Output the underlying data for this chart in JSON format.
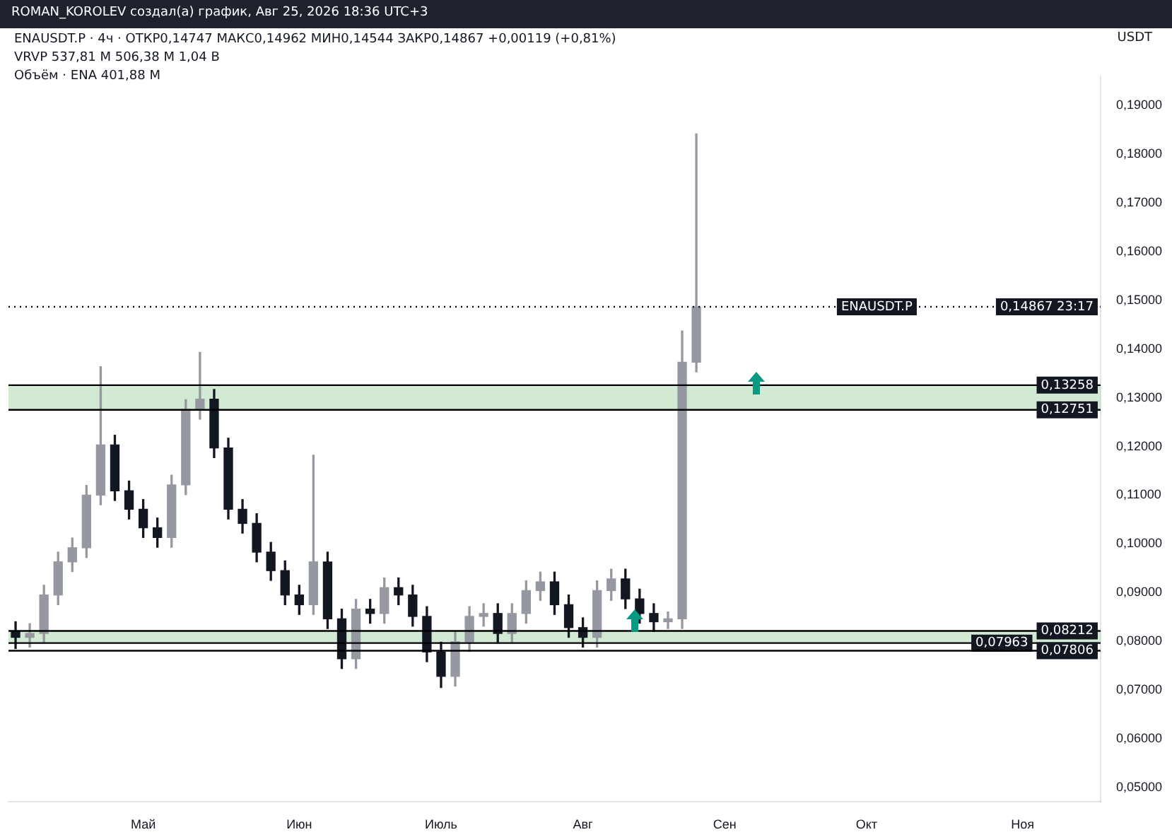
{
  "chart_data": {
    "type": "candlestick",
    "title": "ROMAN_KOROLEV создал(а) график, Авг 25, 2026 18:36 UTC+3",
    "subtitle": "ENAUSDT.P · 4ч · ОТКР0,14747 МАКС0,14962 МИН0,14544 ЗАКР0,14867 +0,00119 (+0,81%)",
    "ylabel": "USDT",
    "annotations": [
      "VRVP 537,81 M 506,38 M 1,04 B",
      "Объём · ENA 401,88 M",
      {
        "text": "ENAUSDT.P",
        "y": 0.14867
      }
    ],
    "categories": [
      null,
      null,
      null,
      null,
      null,
      null,
      null,
      null,
      null,
      "Май",
      null,
      null,
      null,
      null,
      null,
      null,
      null,
      null,
      null,
      null,
      "Июн",
      null,
      null,
      null,
      null,
      null,
      null,
      null,
      null,
      null,
      "Июль",
      null,
      null,
      null,
      null,
      null,
      null,
      null,
      null,
      null,
      "Авг",
      null,
      null,
      null,
      null,
      null,
      null,
      null,
      null,
      null,
      "Сен",
      null,
      null,
      null,
      null,
      null,
      null,
      null,
      null,
      null,
      "Окт",
      null,
      null,
      null,
      null,
      null,
      null,
      null,
      null,
      null,
      null,
      "Ноя",
      null,
      null,
      null,
      null,
      null
    ],
    "series": [
      {
        "colors": [
          "#131722",
          "#9598a1",
          "#9598a1",
          "#9598a1",
          "#9598a1",
          "#9598a1",
          "#9598a1",
          "#131722",
          "#131722",
          "#131722",
          "#131722",
          "#9598a1",
          "#9598a1",
          "#9598a1",
          "#131722",
          "#131722",
          "#131722",
          "#131722",
          "#131722",
          "#131722",
          "#131722",
          "#9598a1",
          "#131722",
          "#131722",
          "#9598a1",
          "#131722",
          "#9598a1",
          "#131722",
          "#131722",
          "#131722",
          "#131722",
          "#9598a1",
          "#9598a1",
          "#9598a1",
          "#131722",
          "#9598a1",
          "#9598a1",
          "#9598a1",
          "#131722",
          "#131722",
          "#131722",
          "#9598a1",
          "#9598a1",
          "#131722",
          "#131722",
          "#131722",
          "#9598a1",
          "#9598a1",
          "#9598a1",
          null,
          null,
          null,
          null,
          null,
          null,
          null,
          null,
          null,
          null,
          null,
          null,
          null,
          null,
          null,
          null,
          null,
          null,
          null,
          null,
          null,
          null,
          null,
          null,
          null,
          null,
          null,
          null
        ],
        "ohlc": [
          [
            0.082,
            0.084,
            0.0785,
            0.0808
          ],
          [
            0.0808,
            0.0836,
            0.0788,
            0.0816
          ],
          [
            0.0816,
            0.0915,
            0.0796,
            0.0895
          ],
          [
            0.0895,
            0.0983,
            0.0875,
            0.0963
          ],
          [
            0.0963,
            0.1012,
            0.0943,
            0.0992
          ],
          [
            0.0992,
            0.112,
            0.0972,
            0.11
          ],
          [
            0.11,
            0.1364,
            0.108,
            0.1203
          ],
          [
            0.1203,
            0.1223,
            0.1089,
            0.1109
          ],
          [
            0.1109,
            0.1129,
            0.1051,
            0.1071
          ],
          [
            0.1071,
            0.1091,
            0.1013,
            0.1033
          ],
          [
            0.1033,
            0.1053,
            0.0993,
            0.1013
          ],
          [
            0.1013,
            0.1141,
            0.0993,
            0.1121
          ],
          [
            0.1121,
            0.1296,
            0.1101,
            0.1276
          ],
          [
            0.1276,
            0.1393,
            0.1256,
            0.1297
          ],
          [
            0.1297,
            0.1317,
            0.1177,
            0.1197
          ],
          [
            0.1197,
            0.1217,
            0.1051,
            0.1071
          ],
          [
            0.1071,
            0.1091,
            0.1022,
            0.1042
          ],
          [
            0.1042,
            0.1062,
            0.0963,
            0.0983
          ],
          [
            0.0983,
            0.1003,
            0.0925,
            0.0945
          ],
          [
            0.0945,
            0.0965,
            0.0875,
            0.0895
          ],
          [
            0.0895,
            0.0915,
            0.0855,
            0.0875
          ],
          [
            0.0875,
            0.1182,
            0.0855,
            0.0963
          ],
          [
            0.0963,
            0.0983,
            0.0826,
            0.0846
          ],
          [
            0.0846,
            0.0866,
            0.0744,
            0.0764
          ],
          [
            0.0764,
            0.0886,
            0.0744,
            0.0866
          ],
          [
            0.0866,
            0.0886,
            0.0837,
            0.0857
          ],
          [
            0.0857,
            0.093,
            0.0837,
            0.091
          ],
          [
            0.091,
            0.093,
            0.0875,
            0.0895
          ],
          [
            0.0895,
            0.0915,
            0.0831,
            0.0851
          ],
          [
            0.0851,
            0.0871,
            0.0758,
            0.0778
          ],
          [
            0.0778,
            0.0798,
            0.0705,
            0.0728
          ],
          [
            0.0728,
            0.0819,
            0.0708,
            0.0799
          ],
          [
            0.0799,
            0.0871,
            0.0779,
            0.0851
          ],
          [
            0.0851,
            0.0877,
            0.0831,
            0.0857
          ],
          [
            0.0857,
            0.0877,
            0.0796,
            0.0816
          ],
          [
            0.0816,
            0.0877,
            0.0796,
            0.0857
          ],
          [
            0.0857,
            0.0924,
            0.0837,
            0.0904
          ],
          [
            0.0904,
            0.0942,
            0.0884,
            0.0922
          ],
          [
            0.0922,
            0.0942,
            0.0855,
            0.0875
          ],
          [
            0.0875,
            0.0895,
            0.0808,
            0.0828
          ],
          [
            0.0828,
            0.0848,
            0.0788,
            0.0808
          ],
          [
            0.0808,
            0.0924,
            0.0788,
            0.0904
          ],
          [
            0.0904,
            0.0948,
            0.0884,
            0.0928
          ],
          [
            0.0928,
            0.0948,
            0.0867,
            0.0887
          ],
          [
            0.0887,
            0.0907,
            0.0837,
            0.0857
          ],
          [
            0.0857,
            0.0877,
            0.082,
            0.084
          ],
          [
            0.084,
            0.086,
            0.0826,
            0.0846
          ],
          [
            0.0846,
            0.1437,
            0.0826,
            0.1373
          ],
          [
            0.1373,
            0.1842,
            0.1353,
            0.14867
          ],
          null,
          null,
          null,
          null,
          null,
          null,
          null,
          null,
          null,
          null,
          null,
          null,
          null,
          null,
          null,
          null,
          null,
          null,
          null,
          null,
          null,
          null,
          null,
          null,
          null,
          null,
          null,
          null
        ]
      }
    ],
    "ylim": [
      0.047,
      0.196
    ],
    "yticks": [
      {
        "value": 0.05,
        "label": "0,05000"
      },
      {
        "value": 0.06,
        "label": "0,06000"
      },
      {
        "value": 0.07,
        "label": "0,07000"
      },
      {
        "value": 0.08,
        "label": "0,08000"
      },
      {
        "value": 0.09,
        "label": "0,09000"
      },
      {
        "value": 0.1,
        "label": "0,10000"
      },
      {
        "value": 0.11,
        "label": "0,11000"
      },
      {
        "value": 0.12,
        "label": "0,12000"
      },
      {
        "value": 0.13,
        "label": "0,13000"
      },
      {
        "value": 0.14,
        "label": "0,14000"
      },
      {
        "value": 0.15,
        "label": "0,15000"
      },
      {
        "value": 0.16,
        "label": "0,16000"
      },
      {
        "value": 0.17,
        "label": "0,17000"
      },
      {
        "value": 0.18,
        "label": "0,18000"
      },
      {
        "value": 0.19,
        "label": "0,19000"
      }
    ],
    "ref_lines": [
      {
        "axis": "y",
        "value": 0.13258,
        "label": "0,13258",
        "color": "#000000",
        "line_style": "solid"
      },
      {
        "axis": "y",
        "value": 0.12751,
        "label": "0,12751",
        "color": "#000000",
        "line_style": "solid"
      },
      {
        "axis": "y",
        "value": 0.08212,
        "label": "0,08212",
        "color": "#000000",
        "line_style": "solid"
      },
      {
        "axis": "y",
        "value": 0.07963,
        "label": "0,07963",
        "color": "#000000",
        "line_style": "solid"
      },
      {
        "axis": "y",
        "value": 0.07806,
        "label": "0,07806",
        "color": "#000000",
        "line_style": "solid"
      },
      {
        "axis": "y",
        "value": 0.14867,
        "label": "0,14867 23:17",
        "color": "#131722",
        "line_style": "dotted"
      }
    ],
    "bands": [
      {
        "axis": "y",
        "from": 0.12751,
        "to": 0.13258,
        "color": "#a5d6a7"
      },
      {
        "axis": "y",
        "from": 0.07963,
        "to": 0.08212,
        "color": "#a5d6a7"
      }
    ],
    "grid": false,
    "legend": false
  }
}
